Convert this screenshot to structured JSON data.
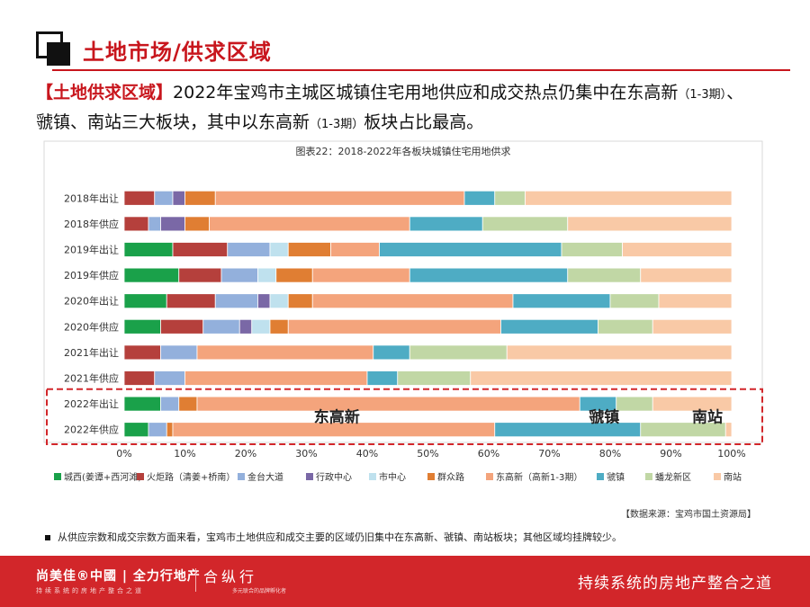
{
  "header": {
    "title": "土地市场/供求区域"
  },
  "lead": {
    "tag": "【土地供求区域】",
    "line1_text": "2022年宝鸡市主城区城镇住宅用地供应和成交热点仍集中在东高新",
    "line1_small": "（1-3期）",
    "line1_end": "、",
    "line2_text": "虢镇、南站三大板块，其中以东高新",
    "line2_small": "（1-3期）",
    "line2_end": "板块占比最高。"
  },
  "chart_data": {
    "type": "bar",
    "orientation": "horizontal-stacked-100",
    "title": "图表22：2018-2022年各板块城镇住宅用地供求",
    "categories": [
      "2018年出让",
      "2018年供应",
      "2019年出让",
      "2019年供应",
      "2020年出让",
      "2020年供应",
      "2021年出让",
      "2021年供应",
      "2022年出让",
      "2022年供应"
    ],
    "x_ticks": [
      "0%",
      "10%",
      "20%",
      "30%",
      "40%",
      "50%",
      "60%",
      "70%",
      "80%",
      "90%",
      "100%"
    ],
    "xlim": [
      0,
      100
    ],
    "grid": false,
    "legend_position": "bottom",
    "series": [
      {
        "name": "城西(姜谭+西河滩)",
        "color": "#1aa14a",
        "values": [
          0,
          0,
          8,
          9,
          7,
          6,
          0,
          0,
          6,
          4
        ]
      },
      {
        "name": "火炬路（清姜+桥南）",
        "color": "#b5403c",
        "values": [
          5,
          4,
          9,
          7,
          8,
          7,
          6,
          5,
          0,
          0
        ]
      },
      {
        "name": "金台大道",
        "color": "#93b0dc",
        "values": [
          3,
          2,
          7,
          6,
          7,
          6,
          6,
          5,
          3,
          3
        ]
      },
      {
        "name": "行政中心",
        "color": "#7a68a6",
        "values": [
          2,
          4,
          0,
          0,
          2,
          2,
          0,
          0,
          0,
          0
        ]
      },
      {
        "name": "市中心",
        "color": "#bfe1ee",
        "values": [
          0,
          0,
          3,
          3,
          3,
          3,
          0,
          0,
          0,
          0
        ]
      },
      {
        "name": "群众路",
        "color": "#e07e33",
        "values": [
          5,
          4,
          7,
          6,
          4,
          3,
          0,
          0,
          3,
          1
        ]
      },
      {
        "name": "东高新（高新1-3期）",
        "color": "#f4a47c",
        "values": [
          41,
          33,
          8,
          16,
          33,
          35,
          29,
          30,
          63,
          53
        ]
      },
      {
        "name": "虢镇",
        "color": "#4eacc4",
        "values": [
          5,
          12,
          30,
          26,
          16,
          16,
          6,
          5,
          6,
          24
        ]
      },
      {
        "name": "蟠龙新区",
        "color": "#c1d7a5",
        "values": [
          5,
          14,
          10,
          12,
          8,
          9,
          16,
          12,
          6,
          14
        ]
      },
      {
        "name": "南站",
        "color": "#f9c9a6",
        "values": [
          34,
          27,
          18,
          15,
          12,
          13,
          37,
          43,
          13,
          1
        ]
      }
    ],
    "annotations": [
      "东高新",
      "虢镇",
      "南站"
    ]
  },
  "source": "【数据来源：宝鸡市国土资源局】",
  "note": "从供应宗数和成交宗数方面来看，宝鸡市土地供应和成交主要的区域仍旧集中在东高新、虢镇、南站板块；其他区域均挂牌较少。",
  "footer": {
    "brand": "尚美佳®中國 | 全力行地产",
    "brand_sub": "持续系统的房地产整合之道",
    "logo2": "合纵行",
    "logo2_sub": "多元联合的品牌孵化者",
    "slogan": "持续系统的房地产整合之道"
  }
}
